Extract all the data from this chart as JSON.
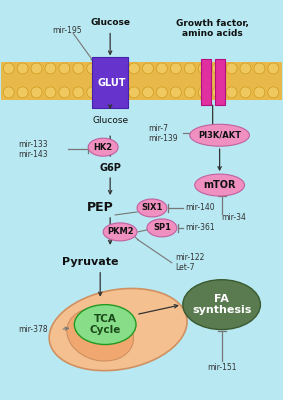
{
  "bg_color": "#b8e8f2",
  "membrane_color": "#e8b84a",
  "membrane_bubble_color": "#f0c860",
  "membrane_bubble_ec": "#c8940c",
  "glut_color": "#6633cc",
  "glut_ec": "#4422aa",
  "receptor_color": "#e030a0",
  "receptor_ec": "#b01080",
  "node_pink_fc": "#f090c0",
  "node_pink_ec": "#c060a0",
  "node_green_fc": "#88dd88",
  "node_green_ec": "#229922",
  "node_darkgreen_fc": "#5a7a50",
  "node_darkgreen_ec": "#3a5a30",
  "mito_outer_fc": "#f5c090",
  "mito_outer_ec": "#d09060",
  "mito_inner_fc": "#f0a870",
  "arrow_color": "#333333",
  "inhibit_color": "#777777",
  "mir_color": "#333333",
  "text_color": "#111111",
  "white": "#ffffff",
  "labels": {
    "mir195": "mir-195",
    "glucose_top": "Glucose",
    "growth_factor": "Growth factor,\namino acids",
    "glut": "GLUT",
    "glucose_mid": "Glucose",
    "hk2": "HK2",
    "g6p": "G6P",
    "mir133": "mir-133",
    "mir143": "mir-143",
    "pep": "PEP",
    "pkm2": "PKM2",
    "six1": "SIX1",
    "sp1": "SP1",
    "pyruvate": "Pyruvate",
    "mir122": "mir-122",
    "let7": "Let-7",
    "mir140": "mir-140",
    "mir361": "mir-361",
    "pi3k": "PI3K/AKT",
    "mtor": "mTOR",
    "mir7": "mir-7",
    "mir139": "mir-139",
    "mir34": "mir-34",
    "tca": "TCA\nCycle",
    "fa": "FA\nsynthesis",
    "mir378": "mir-378",
    "mir151": "mir-151"
  }
}
